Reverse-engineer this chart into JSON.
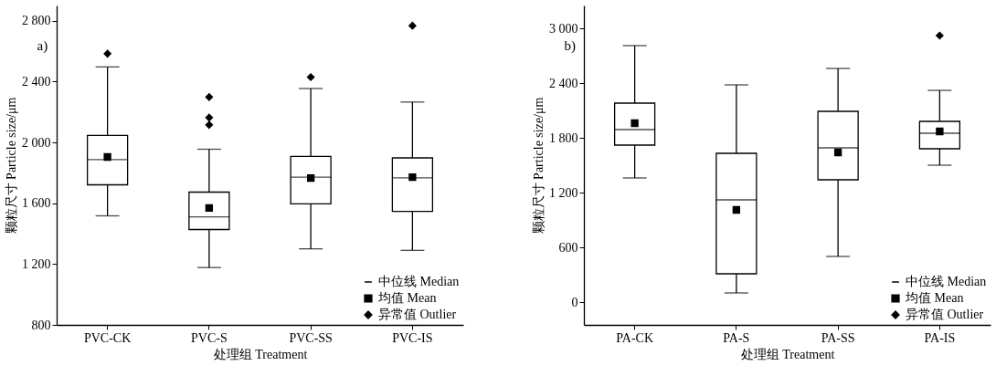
{
  "chart_data": [
    {
      "type": "box",
      "title": "a)",
      "xlabel": "处理组 Treatment",
      "ylabel": "颗粒尺寸 Particle size/μm",
      "categories": [
        "PVC-CK",
        "PVC-S",
        "PVC-SS",
        "PVC-IS"
      ],
      "ylim": [
        800,
        2900
      ],
      "yticks": [
        800,
        {
          "value": 1200,
          "label": "1 200"
        },
        {
          "value": 1600,
          "label": "1 600"
        },
        {
          "value": 2000,
          "label": "2 000"
        },
        {
          "value": 2400,
          "label": "2 400"
        },
        {
          "value": 2800,
          "label": "2 800"
        }
      ],
      "legend": "bottom right",
      "series": [
        {
          "type": "box",
          "name": "中位线 Median",
          "color": "#000000",
          "boxes": [
            {
              "low": 1517,
              "q1": 1721,
              "median": 1887,
              "q3": 2046,
              "high": 2496
            },
            {
              "low": 1177,
              "q1": 1427,
              "median": 1510,
              "q3": 1673,
              "high": 1955
            },
            {
              "low": 1300,
              "q1": 1596,
              "median": 1771,
              "q3": 1908,
              "high": 2354
            },
            {
              "low": 1290,
              "q1": 1546,
              "median": 1767,
              "q3": 1898,
              "high": 2265
            }
          ]
        },
        {
          "type": "scatter",
          "name": "均值 Mean",
          "color": "#000000",
          "marker": "square",
          "x": [
            "PVC-CK",
            "PVC-S",
            "PVC-SS",
            "PVC-IS"
          ],
          "values": [
            1904,
            1569,
            1765,
            1771
          ]
        },
        {
          "type": "scatter",
          "name": "异常值 Outlier",
          "color": "#000000",
          "marker": "diamond",
          "x": [
            "PVC-CK",
            "PVC-S",
            "PVC-S",
            "PVC-S",
            "PVC-SS",
            "PVC-IS"
          ],
          "values": [
            2583,
            2298,
            2163,
            2115,
            2429,
            2767
          ]
        }
      ]
    },
    {
      "type": "box",
      "title": "b)",
      "xlabel": "处理组 Treatment",
      "ylabel": "颗粒尺寸 Particle size/μm",
      "categories": [
        "PA-CK",
        "PA-S",
        "PA-SS",
        "PA-IS"
      ],
      "ylim": [
        -250,
        3250
      ],
      "yticks": [
        0,
        600,
        {
          "value": 1200,
          "label": "1 200"
        },
        {
          "value": 1800,
          "label": "1 800"
        },
        {
          "value": 2400,
          "label": "2 400"
        },
        {
          "value": 3000,
          "label": "3 000"
        }
      ],
      "legend": "bottom right",
      "series": [
        {
          "type": "box",
          "name": "中位线 Median",
          "color": "#000000",
          "boxes": [
            {
              "low": 1360,
              "q1": 1720,
              "median": 1890,
              "q3": 2180,
              "high": 2810
            },
            {
              "low": 100,
              "q1": 310,
              "median": 1120,
              "q3": 1630,
              "high": 2380
            },
            {
              "low": 500,
              "q1": 1340,
              "median": 1690,
              "q3": 2090,
              "high": 2560
            },
            {
              "low": 1500,
              "q1": 1680,
              "median": 1850,
              "q3": 1980,
              "high": 2320
            }
          ]
        },
        {
          "type": "scatter",
          "name": "均值 Mean",
          "color": "#000000",
          "marker": "square",
          "x": [
            "PA-CK",
            "PA-S",
            "PA-SS",
            "PA-IS"
          ],
          "values": [
            1960,
            1010,
            1640,
            1870
          ]
        },
        {
          "type": "scatter",
          "name": "异常值 Outlier",
          "color": "#000000",
          "marker": "diamond",
          "x": [
            "PA-IS"
          ],
          "values": [
            2920
          ]
        }
      ]
    }
  ]
}
